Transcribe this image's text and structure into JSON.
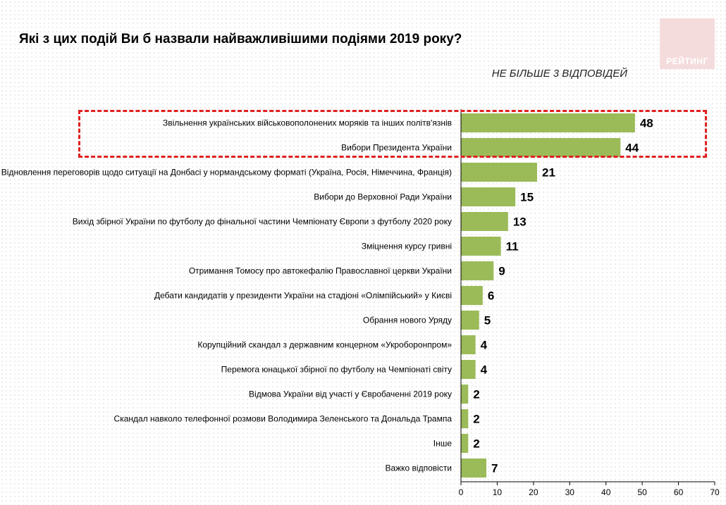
{
  "header": {
    "title": "Які з цих подій Ви б назвали найважливішими подіями 2019 року?",
    "subtitle": "НЕ БІЛЬШЕ 3 ВІДПОВІДЕЙ",
    "logo_text": "РЕЙТИНГ"
  },
  "colors": {
    "bar": "#9bbb59",
    "highlight": "#e02020"
  },
  "chart_data": {
    "type": "bar",
    "orientation": "horizontal",
    "title": "Які з цих подій Ви б назвали найважливішими подіями 2019 року?",
    "subtitle": "НЕ БІЛЬШЕ 3 ВІДПОВІДЕЙ",
    "categories": [
      "Звільнення українських військовополонених моряків та інших політв'язнів",
      "Вибори Президента України",
      "Відновлення переговорів щодо ситуації на Донбасі у нормандському форматі (Україна, Росія, Німеччина, Франція)",
      "Вибори до Верховної Ради України",
      "Вихід збірної України по футболу до фінальної частини Чемпіонату Європи з футболу 2020 року",
      "Зміцнення курсу гривні",
      "Отримання Томосу про автокефалію Православної церкви України",
      "Дебати кандидатів у президенти України на стадіоні «Олімпійський» у Києві",
      "Обрання нового Уряду",
      "Корупційний скандал з державним концерном «Укроборонпром»",
      "Перемога юнацької збірної по футболу на Чемпіонаті світу",
      "Відмова України від участі у Євробаченні 2019 року",
      "Скандал навколо телефонної розмови Володимира Зеленського та Дональда Трампа",
      "Інше",
      "Важко відповісти"
    ],
    "values": [
      48,
      44,
      21,
      15,
      13,
      11,
      9,
      6,
      5,
      4,
      4,
      2,
      2,
      2,
      7
    ],
    "value_labels": [
      "48",
      "44",
      "21",
      "15",
      "13",
      "11",
      "9",
      "6",
      "5",
      "4",
      "4",
      "2",
      "2",
      "2",
      "7"
    ],
    "xlim": [
      0,
      70
    ],
    "xticks": [
      0,
      10,
      20,
      30,
      40,
      50,
      60,
      70
    ],
    "xtick_labels": [
      "0",
      "10",
      "20",
      "30",
      "40",
      "50",
      "60",
      "70"
    ],
    "highlighted_categories": [
      0,
      1
    ],
    "grid": false,
    "legend": "none"
  }
}
